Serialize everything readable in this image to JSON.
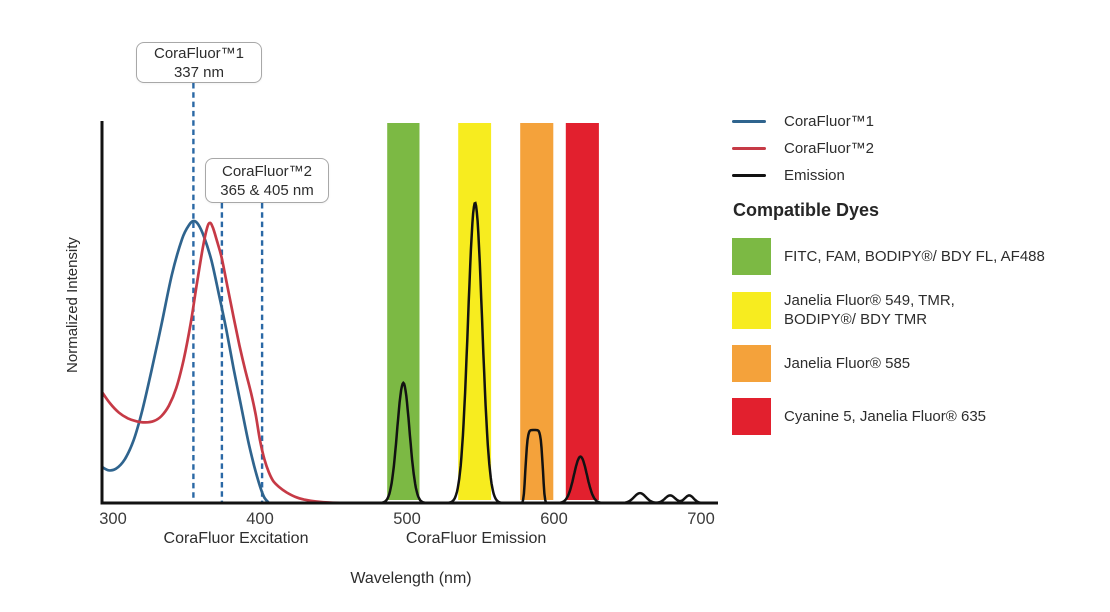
{
  "legend": {
    "items": [
      {
        "label": "CoraFluor™1",
        "color": "#2f648e"
      },
      {
        "label": "CoraFluor™2",
        "color": "#c63a46"
      },
      {
        "label": "Emission",
        "color": "#121212"
      }
    ]
  },
  "dyes": {
    "heading": "Compatible Dyes",
    "items": [
      {
        "color": "#7cb944",
        "label": "FITC, FAM, BODIPY®/ BDY FL, AF488"
      },
      {
        "color": "#f7ec1f",
        "label": "Janelia Fluor® 549, TMR,\nBODIPY®/ BDY TMR"
      },
      {
        "color": "#f4a23b",
        "label": "Janelia Fluor® 585"
      },
      {
        "color": "#e2202e",
        "label": "Cyanine 5, Janelia Fluor® 635"
      }
    ]
  },
  "chart_data": {
    "type": "line",
    "xlabel": "Wavelength (nm)",
    "ylabel": "Normalized Intensity",
    "x_ticks": [
      300,
      400,
      500,
      600,
      700
    ],
    "x_range_nm": [
      292,
      712
    ],
    "y_range": [
      0,
      1
    ],
    "grid": false,
    "legend_position": "right",
    "axis_color": "#121212",
    "tick_label_color": "#3b3b3b",
    "dashed_line_color": "#2a68a5",
    "axis_group_labels": [
      {
        "text": "CoraFluor Excitation",
        "center_nm": 383.7
      },
      {
        "text": "CoraFluor Emission",
        "center_nm": 547.0
      }
    ],
    "annotations": [
      {
        "title": "CoraFluor™1",
        "value": "337 nm",
        "lines_nm": [
          354.7
        ],
        "line_top_y": 83
      },
      {
        "title": "CoraFluor™2",
        "value": "365 & 405 nm",
        "lines_nm": [
          374.1,
          401.4
        ],
        "line_top_y": 203
      }
    ],
    "filter_bands": [
      {
        "id": "green",
        "color": "#7cb944",
        "from_nm": 486.5,
        "to_nm": 508.5,
        "dyes": "FITC, FAM, BODIPY®/ BDY FL, AF488"
      },
      {
        "id": "yellow",
        "color": "#f7ec1f",
        "from_nm": 534.8,
        "to_nm": 557.2,
        "dyes": "Janelia Fluor® 549, TMR, BODIPY®/ BDY TMR"
      },
      {
        "id": "orange",
        "color": "#f4a23b",
        "from_nm": 577.0,
        "to_nm": 599.5,
        "dyes": "Janelia Fluor® 585"
      },
      {
        "id": "red",
        "color": "#e2202e",
        "from_nm": 608.0,
        "to_nm": 630.5,
        "dyes": "Cyanine 5, Janelia Fluor® 635"
      }
    ],
    "series": [
      {
        "name": "CoraFluor™1",
        "role": "excitation",
        "color": "#2f648e",
        "points": [
          [
            292.5,
            0.095
          ],
          [
            297,
            0.086
          ],
          [
            302,
            0.09
          ],
          [
            308,
            0.115
          ],
          [
            314,
            0.165
          ],
          [
            320,
            0.245
          ],
          [
            326,
            0.345
          ],
          [
            333,
            0.47
          ],
          [
            340,
            0.6
          ],
          [
            347,
            0.695
          ],
          [
            352,
            0.733
          ],
          [
            355,
            0.742
          ],
          [
            358,
            0.733
          ],
          [
            362,
            0.7
          ],
          [
            367,
            0.638
          ],
          [
            372,
            0.55
          ],
          [
            377,
            0.458
          ],
          [
            382,
            0.355
          ],
          [
            387,
            0.258
          ],
          [
            392,
            0.163
          ],
          [
            396,
            0.098
          ],
          [
            400,
            0.044
          ],
          [
            403,
            0.014
          ],
          [
            406,
            0.001
          ],
          [
            407,
            0
          ]
        ]
      },
      {
        "name": "CoraFluor™2",
        "role": "excitation",
        "color": "#c63a46",
        "points": [
          [
            292.5,
            0.292
          ],
          [
            298,
            0.262
          ],
          [
            304,
            0.238
          ],
          [
            310,
            0.223
          ],
          [
            316,
            0.215
          ],
          [
            322,
            0.212
          ],
          [
            328,
            0.216
          ],
          [
            333,
            0.229
          ],
          [
            338,
            0.256
          ],
          [
            343,
            0.302
          ],
          [
            348,
            0.376
          ],
          [
            353,
            0.476
          ],
          [
            357,
            0.576
          ],
          [
            361,
            0.67
          ],
          [
            364,
            0.724
          ],
          [
            366,
            0.737
          ],
          [
            368,
            0.724
          ],
          [
            371,
            0.686
          ],
          [
            374,
            0.644
          ],
          [
            378,
            0.566
          ],
          [
            382,
            0.49
          ],
          [
            386,
            0.415
          ],
          [
            390,
            0.349
          ],
          [
            394,
            0.288
          ],
          [
            397,
            0.234
          ],
          [
            400,
            0.165
          ],
          [
            403,
            0.115
          ],
          [
            406,
            0.081
          ],
          [
            409,
            0.058
          ],
          [
            413,
            0.042
          ],
          [
            418,
            0.028
          ],
          [
            424,
            0.016
          ],
          [
            430,
            0.009
          ],
          [
            438,
            0.004
          ],
          [
            448,
            0.001
          ],
          [
            462,
            0
          ]
        ]
      },
      {
        "name": "Emission",
        "role": "emission",
        "color": "#121212",
        "peaks": [
          {
            "shape": "gaussian",
            "center_nm": 497.5,
            "height": 0.316,
            "sigma_nm": 4.2
          },
          {
            "shape": "gaussian",
            "center_nm": 546.3,
            "height": 0.79,
            "sigma_nm": 4.8
          },
          {
            "shape": "flattop",
            "center_nm": 586.5,
            "height": 0.192,
            "width_nm": 6.2,
            "power": 6
          },
          {
            "shape": "gaussian",
            "center_nm": 618.0,
            "height": 0.122,
            "sigma_nm": 4.4
          },
          {
            "shape": "gaussian",
            "center_nm": 658.5,
            "height": 0.026,
            "sigma_nm": 4.0
          },
          {
            "shape": "gaussian",
            "center_nm": 679.0,
            "height": 0.02,
            "sigma_nm": 3.4
          },
          {
            "shape": "gaussian",
            "center_nm": 692.0,
            "height": 0.02,
            "sigma_nm": 3.0
          }
        ]
      }
    ]
  }
}
